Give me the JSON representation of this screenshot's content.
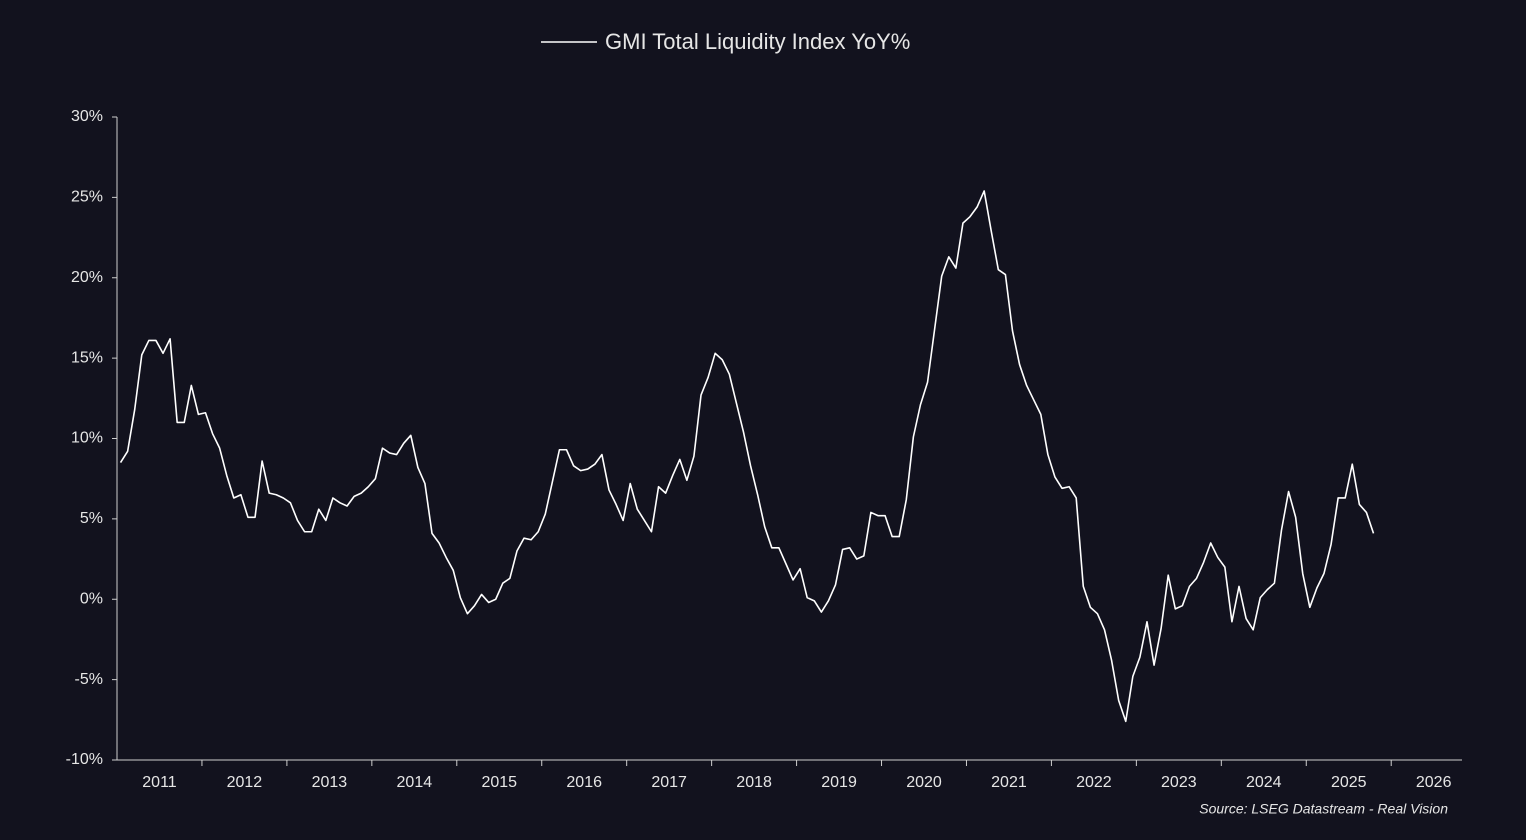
{
  "chart_data": {
    "type": "line",
    "series": [
      {
        "name": "GMI Total Liquidity Index YoY%",
        "color": "#ffffff",
        "values": [
          8.5,
          9.2,
          11.8,
          15.2,
          16.1,
          16.1,
          15.3,
          16.2,
          11.0,
          11.0,
          13.3,
          11.5,
          11.6,
          10.3,
          9.4,
          7.7,
          6.3,
          6.5,
          5.1,
          5.1,
          8.6,
          6.6,
          6.5,
          6.3,
          6.0,
          4.9,
          4.2,
          4.2,
          5.6,
          4.9,
          6.3,
          6.0,
          5.8,
          6.4,
          6.6,
          7.0,
          7.5,
          9.4,
          9.1,
          9.0,
          9.7,
          10.2,
          8.2,
          7.2,
          4.1,
          3.5,
          2.6,
          1.8,
          0.1,
          -0.9,
          -0.4,
          0.3,
          -0.2,
          0.0,
          1.0,
          1.3,
          3.0,
          3.8,
          3.7,
          4.2,
          5.3,
          7.3,
          9.3,
          9.3,
          8.3,
          8.0,
          8.1,
          8.4,
          9.0,
          6.8,
          5.9,
          4.9,
          7.2,
          5.6,
          4.9,
          4.2,
          7.0,
          6.6,
          7.7,
          8.7,
          7.4,
          8.9,
          12.7,
          13.8,
          15.3,
          14.9,
          14.0,
          12.2,
          10.4,
          8.3,
          6.5,
          4.5,
          3.2,
          3.2,
          2.2,
          1.2,
          1.9,
          0.1,
          -0.1,
          -0.8,
          -0.1,
          0.9,
          3.1,
          3.2,
          2.5,
          2.7,
          5.4,
          5.2,
          5.2,
          3.9,
          3.9,
          6.2,
          10.1,
          12.1,
          13.5,
          16.8,
          20.1,
          21.3,
          20.6,
          23.4,
          23.8,
          24.4,
          25.4,
          22.9,
          20.5,
          20.2,
          16.7,
          14.6,
          13.3,
          12.4,
          11.5,
          9.0,
          7.6,
          6.9,
          7.0,
          6.3,
          0.8,
          -0.5,
          -0.9,
          -1.9,
          -3.8,
          -6.3,
          -7.6,
          -4.8,
          -3.6,
          -1.4,
          -4.1,
          -1.8,
          1.5,
          -0.6,
          -0.4,
          0.8,
          1.3,
          2.3,
          3.5,
          2.6,
          2.0,
          -1.4,
          0.8,
          -1.2,
          -1.9,
          0.1,
          0.6,
          1.0,
          4.3,
          6.7,
          5.1,
          1.6,
          -0.5,
          0.7,
          1.6,
          3.4,
          6.3,
          6.3,
          8.4,
          5.9,
          5.4,
          4.1
        ]
      }
    ],
    "x": [
      "2011-01",
      "2011-02",
      "2011-03",
      "2011-04",
      "2011-05",
      "2011-06",
      "2011-07",
      "2011-08",
      "2011-09",
      "2011-10",
      "2011-11",
      "2011-12",
      "2012-01",
      "2012-02",
      "2012-03",
      "2012-04",
      "2012-05",
      "2012-06",
      "2012-07",
      "2012-08",
      "2012-09",
      "2012-10",
      "2012-11",
      "2012-12",
      "2013-01",
      "2013-02",
      "2013-03",
      "2013-04",
      "2013-05",
      "2013-06",
      "2013-07",
      "2013-08",
      "2013-09",
      "2013-10",
      "2013-11",
      "2013-12",
      "2014-01",
      "2014-02",
      "2014-03",
      "2014-04",
      "2014-05",
      "2014-06",
      "2014-07",
      "2014-08",
      "2014-09",
      "2014-10",
      "2014-11",
      "2014-12",
      "2015-01",
      "2015-02",
      "2015-03",
      "2015-04",
      "2015-05",
      "2015-06",
      "2015-07",
      "2015-08",
      "2015-09",
      "2015-10",
      "2015-11",
      "2015-12",
      "2016-01",
      "2016-02",
      "2016-03",
      "2016-04",
      "2016-05",
      "2016-06",
      "2016-07",
      "2016-08",
      "2016-09",
      "2016-10",
      "2016-11",
      "2016-12",
      "2017-01",
      "2017-02",
      "2017-03",
      "2017-04",
      "2017-05",
      "2017-06",
      "2017-07",
      "2017-08",
      "2017-09",
      "2017-10",
      "2017-11",
      "2017-12",
      "2018-01",
      "2018-02",
      "2018-03",
      "2018-04",
      "2018-05",
      "2018-06",
      "2018-07",
      "2018-08",
      "2018-09",
      "2018-10",
      "2018-11",
      "2018-12",
      "2019-01",
      "2019-02",
      "2019-03",
      "2019-04",
      "2019-05",
      "2019-06",
      "2019-07",
      "2019-08",
      "2019-09",
      "2019-10",
      "2019-11",
      "2019-12",
      "2020-01",
      "2020-02",
      "2020-03",
      "2020-04",
      "2020-05",
      "2020-06",
      "2020-07",
      "2020-08",
      "2020-09",
      "2020-10",
      "2020-11",
      "2020-12",
      "2021-01",
      "2021-02",
      "2021-03",
      "2021-04",
      "2021-05",
      "2021-06",
      "2021-07",
      "2021-08",
      "2021-09",
      "2021-10",
      "2021-11",
      "2021-12",
      "2022-01",
      "2022-02",
      "2022-03",
      "2022-04",
      "2022-05",
      "2022-06",
      "2022-07",
      "2022-08",
      "2022-09",
      "2022-10",
      "2022-11",
      "2022-12",
      "2023-01",
      "2023-02",
      "2023-03",
      "2023-04",
      "2023-05",
      "2023-06",
      "2023-07",
      "2023-08",
      "2023-09",
      "2023-10",
      "2023-11",
      "2023-12",
      "2024-01",
      "2024-02",
      "2024-03",
      "2024-04",
      "2024-05",
      "2024-06",
      "2024-07",
      "2024-08",
      "2024-09",
      "2024-10",
      "2024-11",
      "2024-12",
      "2025-01",
      "2025-02",
      "2025-03",
      "2025-04",
      "2025-05",
      "2025-06",
      "2025-07",
      "2025-08",
      "2025-09",
      "2025-10"
    ],
    "xlim": [
      "2011-01",
      "2026-11"
    ],
    "xticks": [
      2011,
      2012,
      2013,
      2014,
      2015,
      2016,
      2017,
      2018,
      2019,
      2020,
      2021,
      2022,
      2023,
      2024,
      2025,
      2026
    ],
    "ylim": [
      -10,
      30
    ],
    "yticks": [
      {
        "value": -10,
        "label": "-10%"
      },
      {
        "value": -5,
        "label": "-5%"
      },
      {
        "value": 0,
        "label": "0%"
      },
      {
        "value": 5,
        "label": "5%"
      },
      {
        "value": 10,
        "label": "10%"
      },
      {
        "value": 15,
        "label": "15%"
      },
      {
        "value": 20,
        "label": "20%"
      },
      {
        "value": 25,
        "label": "25%"
      },
      {
        "value": 30,
        "label": "30%"
      }
    ],
    "grid": false,
    "legend": "top",
    "source": "Source: LSEG Datastream - Real Vision"
  }
}
